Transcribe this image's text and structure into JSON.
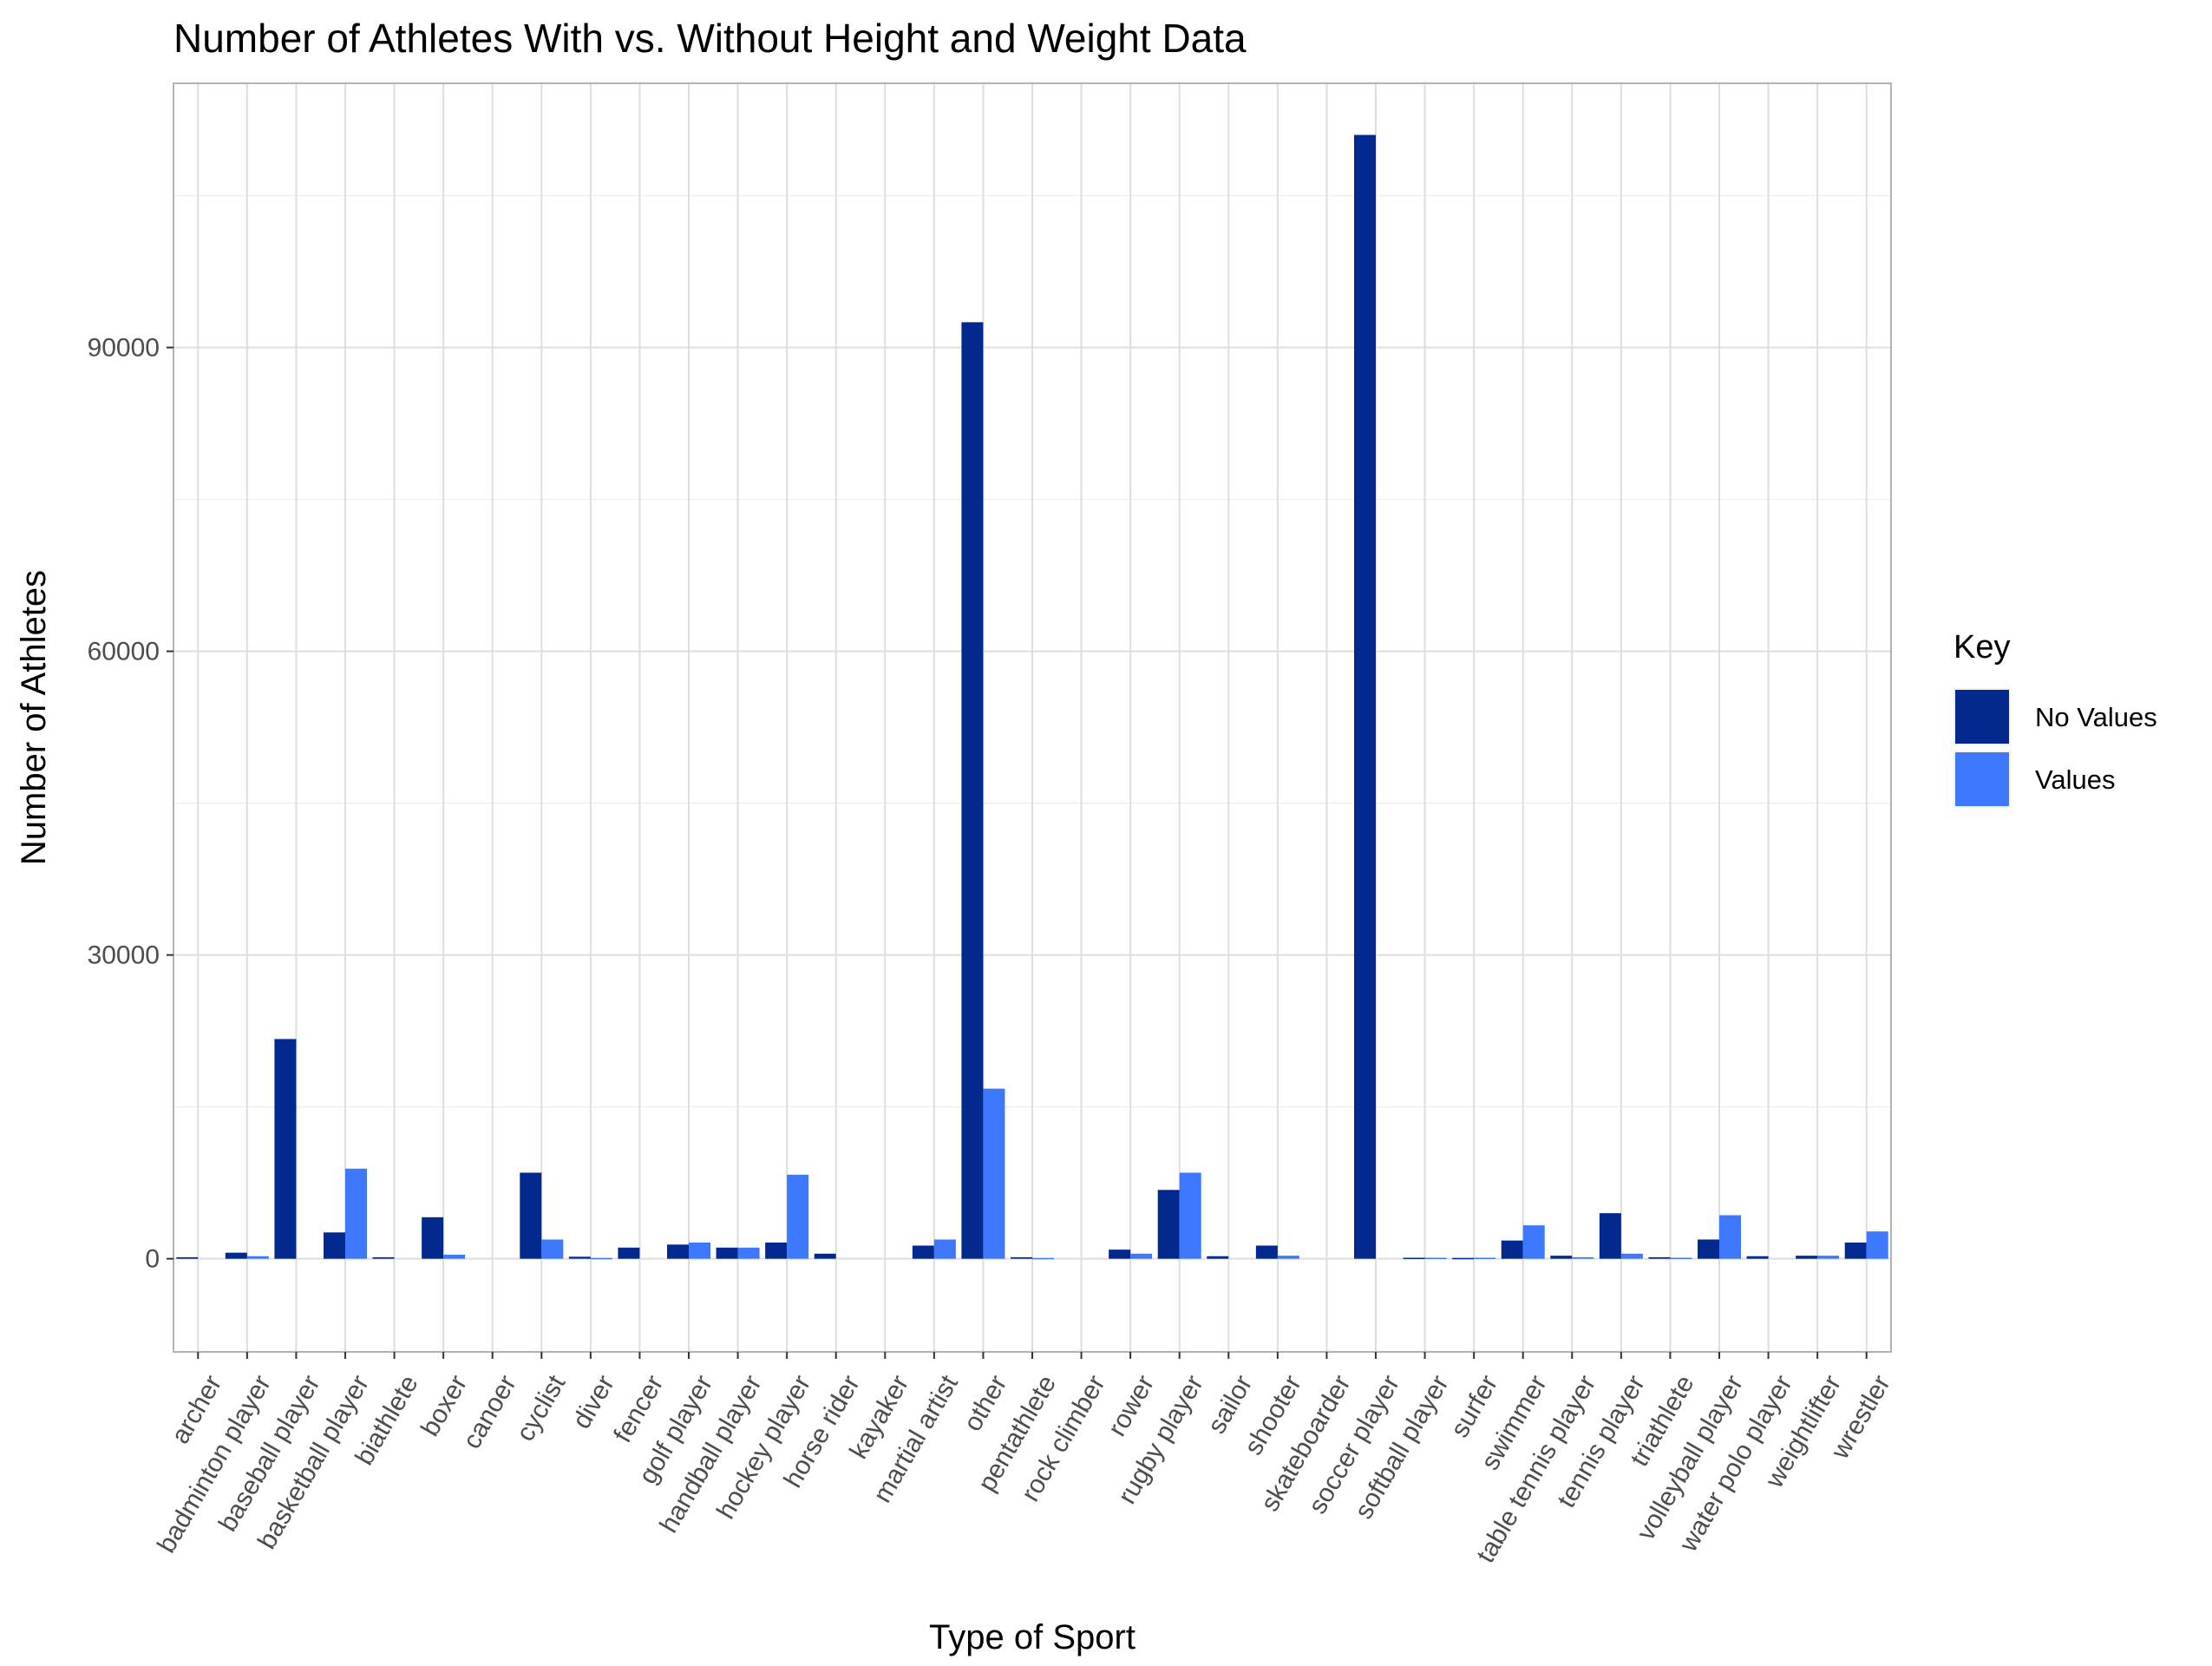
{
  "chart_data": {
    "type": "bar",
    "title": "Number of Athletes With vs. Without Height and Weight Data",
    "xlabel": "Type of Sport",
    "ylabel": "Number of Athletes",
    "ylim": [
      -9200,
      116100
    ],
    "yticks": [
      0,
      30000,
      60000,
      90000
    ],
    "ytick_labels": [
      "0",
      "30000",
      "60000",
      "90000"
    ],
    "grid": true,
    "legend": {
      "title": "Key",
      "position": "right"
    },
    "categories": [
      "archer",
      "badminton player",
      "baseball player",
      "basketball player",
      "biathlete",
      "boxer",
      "canoer",
      "cyclist",
      "diver",
      "fencer",
      "golf player",
      "handball player",
      "hockey player",
      "horse rider",
      "kayaker",
      "martial artist",
      "other",
      "pentathlete",
      "rock climber",
      "rower",
      "rugby player",
      "sailor",
      "shooter",
      "skateboarder",
      "soccer player",
      "softball player",
      "surfer",
      "swimmer",
      "table tennis player",
      "tennis player",
      "triathlete",
      "volleyball player",
      "water polo player",
      "weightlifter",
      "wrestler"
    ],
    "series": [
      {
        "name": "No Values",
        "color": "#03298f",
        "values": [
          150,
          600,
          21700,
          2600,
          150,
          4100,
          0,
          8500,
          200,
          1100,
          1400,
          1100,
          1600,
          500,
          0,
          1300,
          92500,
          150,
          0,
          900,
          6800,
          250,
          1300,
          0,
          111000,
          100,
          80,
          1800,
          300,
          4500,
          150,
          1900,
          250,
          300,
          1600
        ]
      },
      {
        "name": "Values",
        "color": "#3e78ff",
        "values": [
          0,
          250,
          0,
          8900,
          0,
          400,
          0,
          1900,
          80,
          0,
          1600,
          1100,
          8300,
          0,
          0,
          1900,
          16800,
          80,
          0,
          500,
          8500,
          0,
          300,
          0,
          0,
          100,
          100,
          3300,
          150,
          500,
          100,
          4300,
          0,
          300,
          2700
        ]
      }
    ]
  }
}
